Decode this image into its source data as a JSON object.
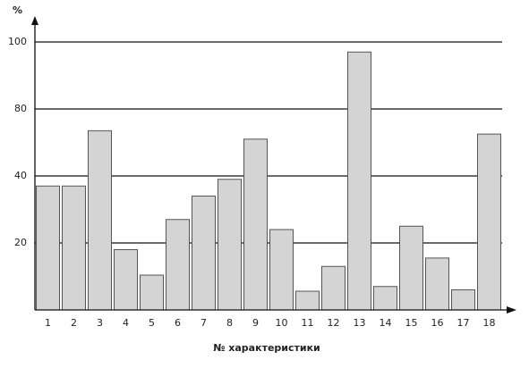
{
  "chart_data": {
    "type": "bar",
    "y_label": "%",
    "x_label": "№ характеристики",
    "categories": [
      "1",
      "2",
      "3",
      "4",
      "5",
      "6",
      "7",
      "8",
      "9",
      "10",
      "11",
      "12",
      "13",
      "14",
      "15",
      "16",
      "17",
      "18"
    ],
    "values": [
      37,
      37,
      67,
      18,
      10.4,
      27,
      34,
      39,
      62,
      24,
      5.6,
      13,
      97,
      7,
      25,
      15.5,
      6,
      65
    ],
    "color": "#d4d4d4",
    "ylim": [
      0,
      100
    ],
    "yticks": [
      20,
      40,
      80,
      100
    ],
    "grid": true
  }
}
